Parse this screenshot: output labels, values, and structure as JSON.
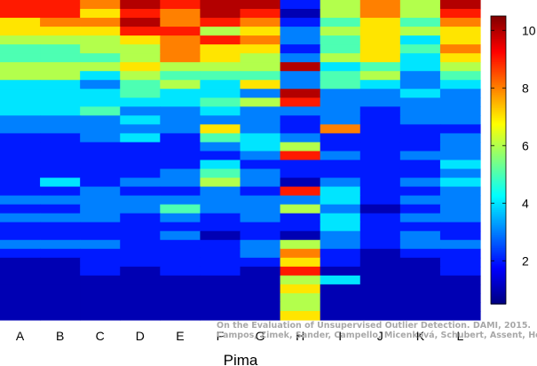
{
  "credit": {
    "line1": "On the Evaluation of Unsupervised Outlier Detection. DAMI, 2015.",
    "line2": "Campos, Zimek, Sander, Campello, Micenková, Schubert, Assent, Houle"
  },
  "chart_data": {
    "type": "heatmap",
    "xlabel": "Pima",
    "ylabel": "",
    "title": "",
    "columns": [
      "A",
      "B",
      "C",
      "D",
      "E",
      "F",
      "G",
      "H",
      "I",
      "J",
      "K",
      "L"
    ],
    "colorbar": {
      "min": 0.5,
      "max": 10.5,
      "ticks": [
        2,
        4,
        6,
        8,
        10
      ],
      "colormap": "jet"
    },
    "values": [
      [
        9,
        9,
        8,
        10,
        9,
        10,
        10,
        2,
        6,
        8,
        6,
        10
      ],
      [
        9,
        9,
        7,
        9,
        8,
        10,
        9,
        1,
        6,
        8,
        6,
        9
      ],
      [
        7,
        8,
        8,
        10,
        8,
        9,
        8,
        2,
        5,
        7,
        5,
        8
      ],
      [
        7,
        7,
        7,
        9,
        9,
        6,
        7,
        3,
        6,
        7,
        6,
        7
      ],
      [
        6,
        6,
        6,
        7,
        8,
        9,
        8,
        3,
        5,
        7,
        4,
        7
      ],
      [
        5,
        5,
        6,
        6,
        8,
        7,
        7,
        2,
        5,
        7,
        5,
        8
      ],
      [
        5,
        5,
        5,
        6,
        8,
        7,
        6,
        3,
        6,
        7,
        4,
        7
      ],
      [
        6,
        6,
        6,
        7,
        6,
        6,
        6,
        10,
        4,
        5,
        4,
        6
      ],
      [
        6,
        6,
        4,
        6,
        5,
        5,
        5,
        3,
        5,
        6,
        3,
        5
      ],
      [
        4,
        4,
        3,
        5,
        6,
        4,
        7,
        3,
        5,
        4,
        3,
        4
      ],
      [
        4,
        4,
        4,
        5,
        4,
        4,
        3,
        10,
        3,
        3,
        4,
        3
      ],
      [
        4,
        4,
        4,
        4,
        4,
        5,
        6,
        9,
        3,
        3,
        3,
        3
      ],
      [
        4,
        4,
        5,
        3,
        3,
        4,
        3,
        3,
        3,
        2,
        3,
        3
      ],
      [
        3,
        3,
        3,
        4,
        3,
        3,
        3,
        2,
        3,
        2,
        3,
        3
      ],
      [
        3,
        3,
        3,
        3,
        3,
        7,
        3,
        2,
        8,
        2,
        2,
        2
      ],
      [
        2,
        2,
        3,
        4,
        2,
        5,
        4,
        3,
        2,
        2,
        2,
        3
      ],
      [
        2,
        2,
        2,
        2,
        2,
        3,
        4,
        6,
        2,
        2,
        2,
        3
      ],
      [
        2,
        2,
        2,
        2,
        2,
        2,
        3,
        9,
        3,
        2,
        3,
        3
      ],
      [
        2,
        2,
        2,
        2,
        2,
        4,
        2,
        2,
        2,
        2,
        2,
        4
      ],
      [
        2,
        2,
        2,
        2,
        3,
        5,
        3,
        2,
        2,
        2,
        2,
        3
      ],
      [
        2,
        4,
        2,
        3,
        3,
        6,
        3,
        1,
        3,
        2,
        3,
        4
      ],
      [
        2,
        2,
        3,
        2,
        2,
        3,
        2,
        9,
        4,
        2,
        2,
        3
      ],
      [
        3,
        3,
        3,
        3,
        3,
        3,
        3,
        3,
        4,
        2,
        3,
        3
      ],
      [
        2,
        2,
        3,
        3,
        5,
        3,
        3,
        6,
        3,
        1,
        2,
        3
      ],
      [
        3,
        3,
        3,
        2,
        3,
        2,
        3,
        2,
        4,
        2,
        3,
        3
      ],
      [
        2,
        2,
        2,
        2,
        2,
        2,
        2,
        2,
        4,
        2,
        2,
        2
      ],
      [
        2,
        2,
        2,
        2,
        3,
        1,
        2,
        1,
        3,
        2,
        3,
        2
      ],
      [
        3,
        3,
        3,
        2,
        2,
        2,
        3,
        6,
        3,
        2,
        3,
        3
      ],
      [
        2,
        2,
        2,
        2,
        2,
        2,
        3,
        8,
        2,
        1,
        2,
        2
      ],
      [
        1,
        1,
        2,
        2,
        2,
        2,
        2,
        7,
        2,
        1,
        1,
        2
      ],
      [
        1,
        1,
        2,
        1,
        2,
        2,
        1,
        9,
        1,
        1,
        1,
        2
      ],
      [
        1,
        1,
        1,
        1,
        1,
        1,
        1,
        6,
        4,
        1,
        1,
        1
      ],
      [
        1,
        1,
        1,
        1,
        1,
        1,
        1,
        7,
        1,
        1,
        1,
        1
      ],
      [
        1,
        1,
        1,
        1,
        1,
        1,
        1,
        6,
        1,
        1,
        1,
        1
      ],
      [
        1,
        1,
        1,
        1,
        1,
        1,
        1,
        6,
        1,
        1,
        1,
        1
      ],
      [
        1,
        1,
        1,
        1,
        1,
        1,
        1,
        7,
        1,
        1,
        1,
        1
      ]
    ]
  }
}
